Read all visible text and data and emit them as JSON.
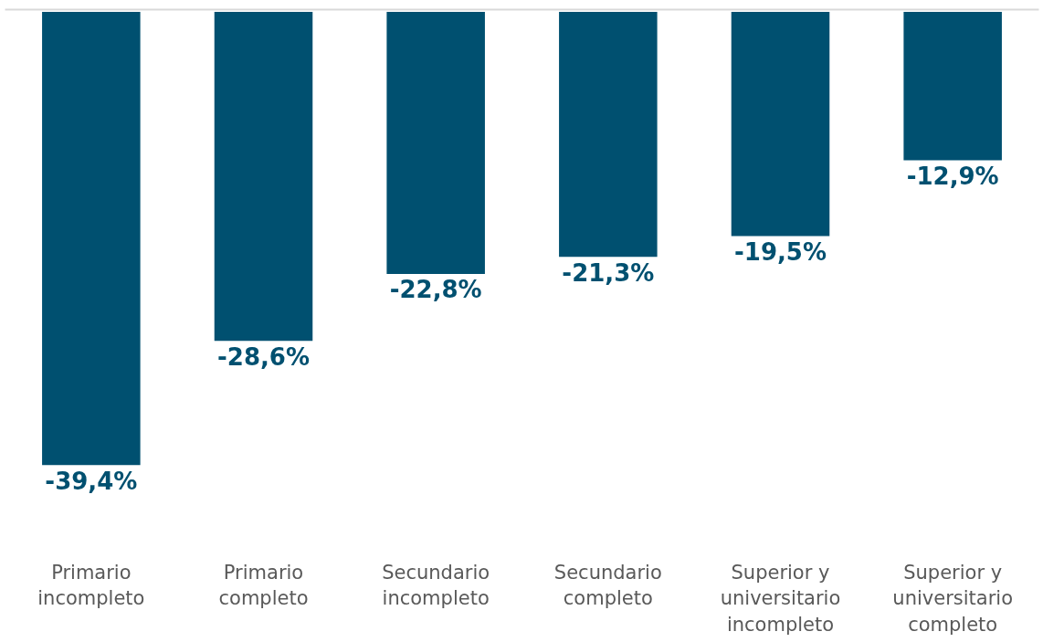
{
  "chart_data": {
    "type": "bar",
    "categories": [
      "Primario\nincompleto",
      "Primario\ncompleto",
      "Secundario\nincompleto",
      "Secundario\ncompleto",
      "Superior y\nuniversitario\nincompleto",
      "Superior y\nuniversitario\ncompleto"
    ],
    "color": "#005070",
    "values": [
      -39.4,
      -28.6,
      -22.8,
      -21.3,
      -19.5,
      -12.9
    ],
    "value_labels": [
      "-39,4%",
      "-28,6%",
      "-22,8%",
      "-21,3%",
      "-19,5%",
      "-12,9%"
    ]
  }
}
